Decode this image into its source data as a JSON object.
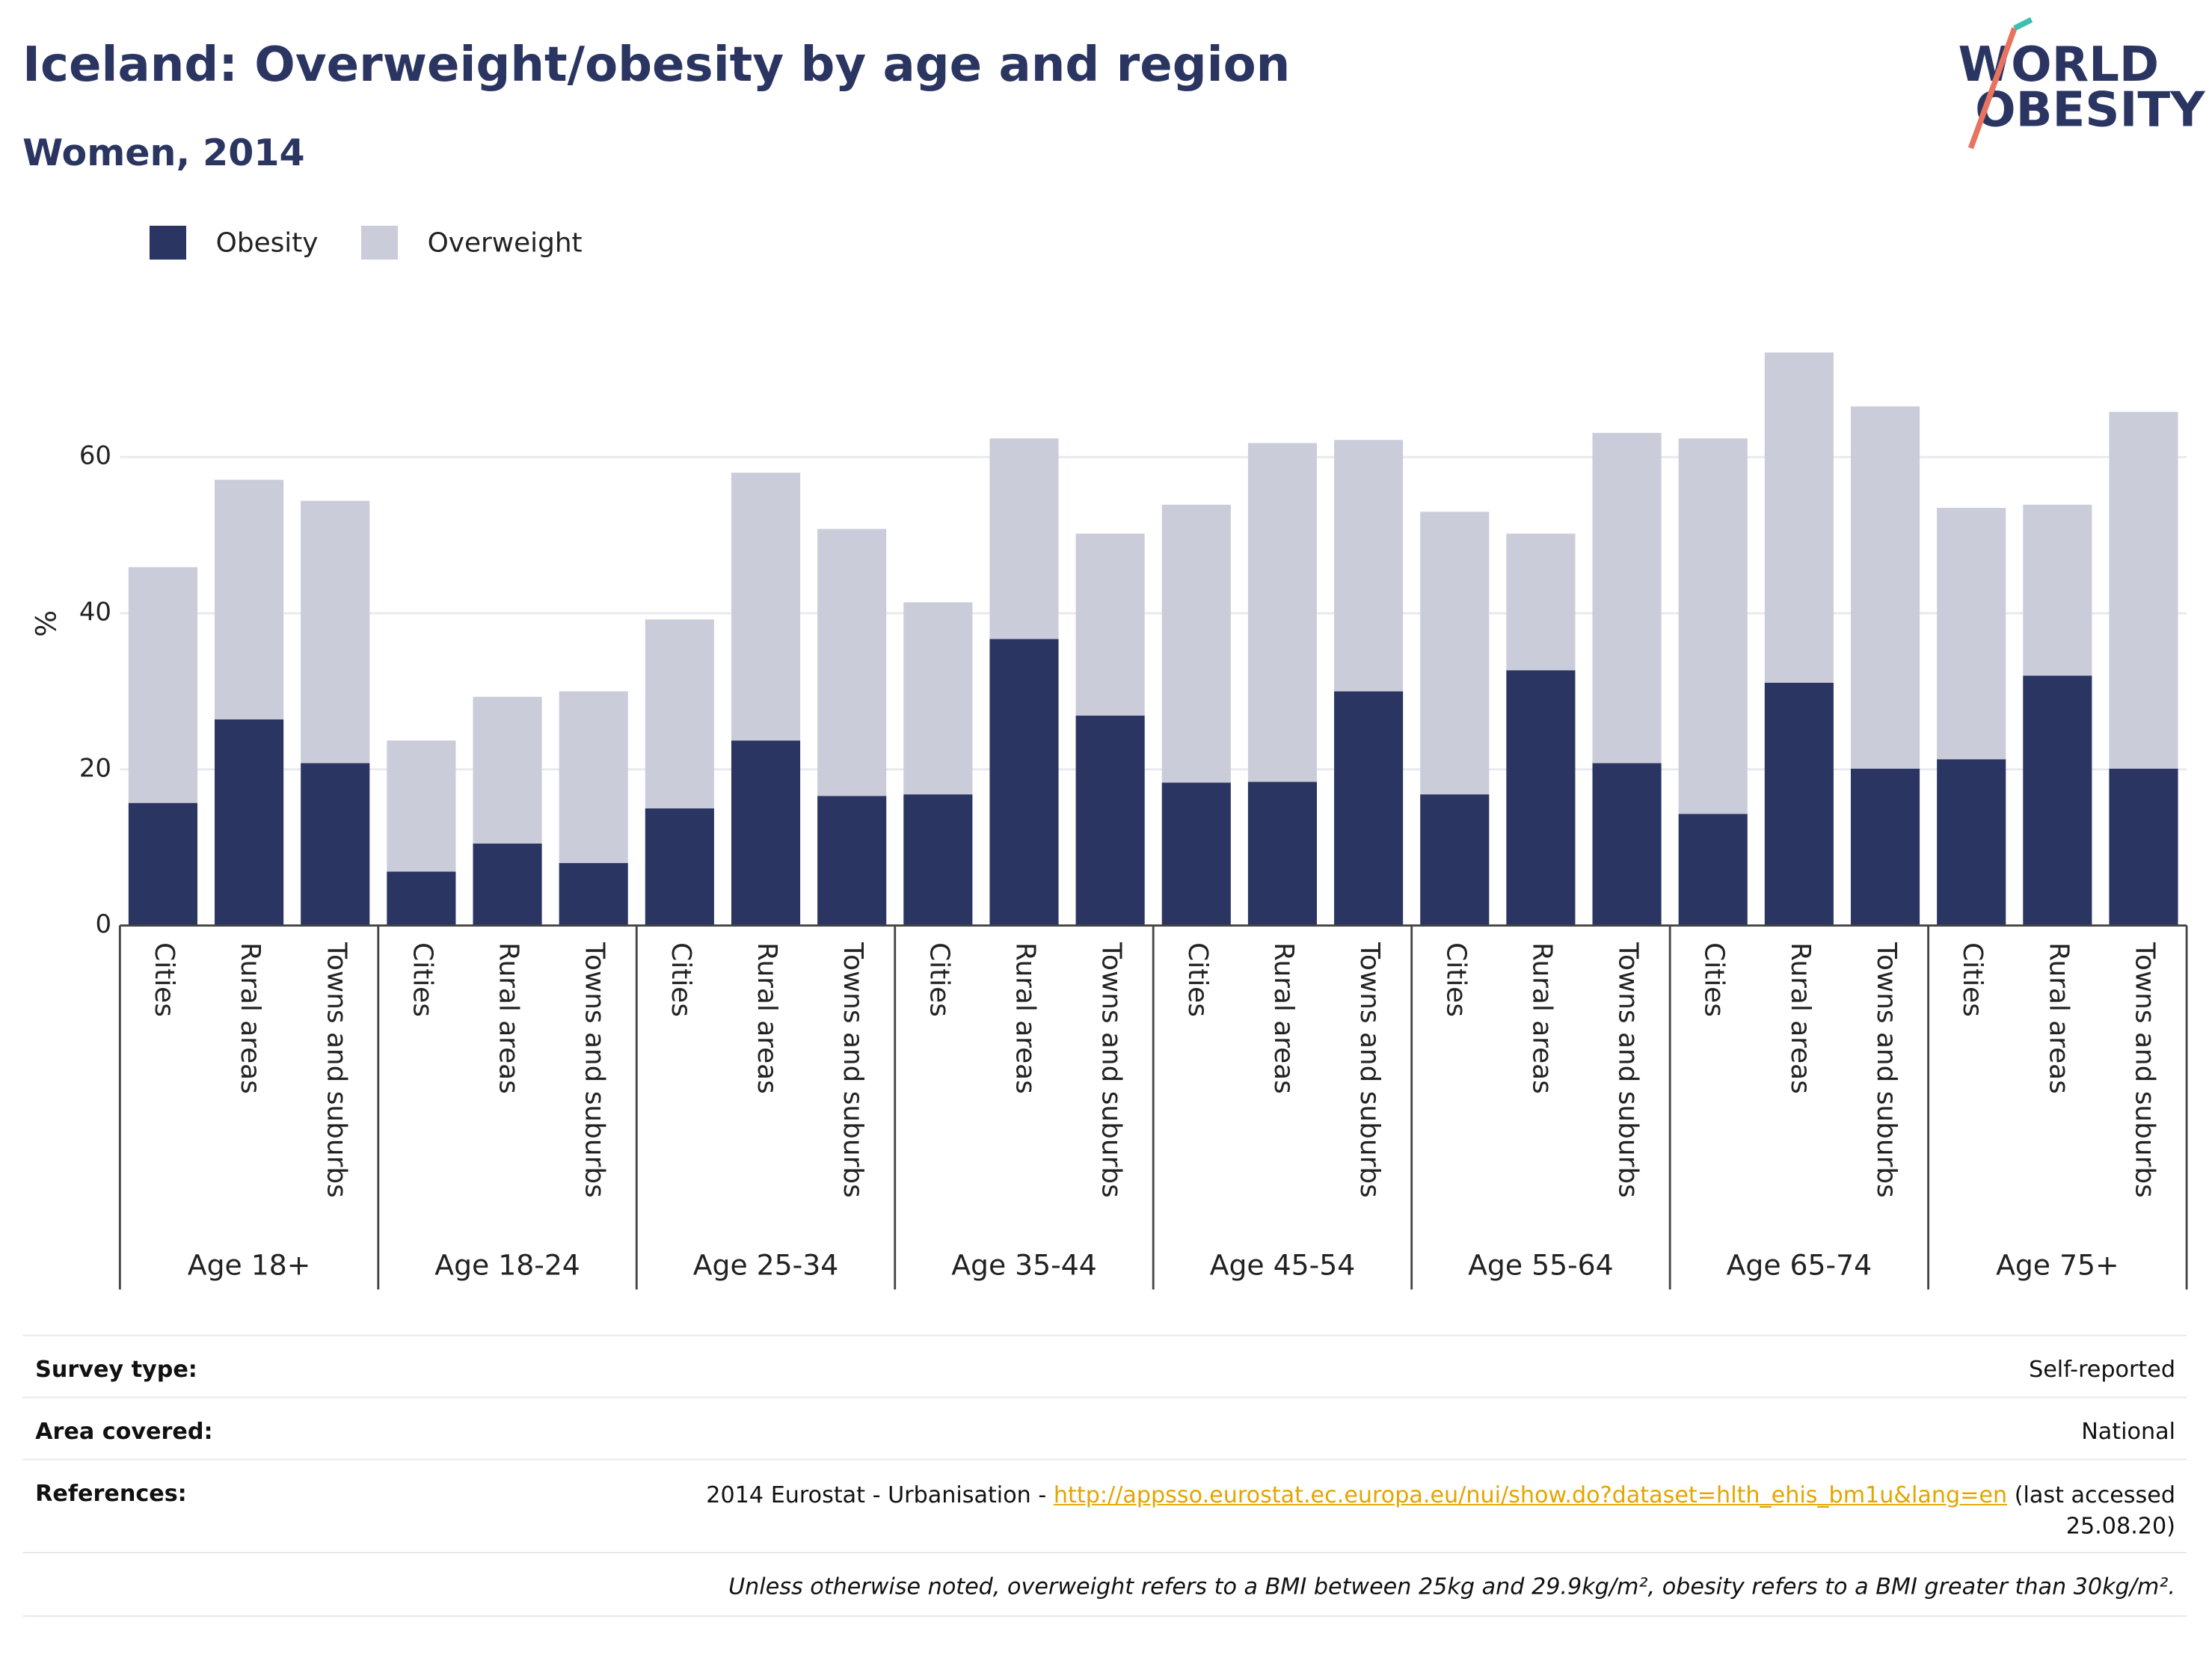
{
  "chart_data": {
    "type": "stacked_bar",
    "title": "Iceland: Overweight/obesity by age and region",
    "subtitle": "Women, 2014",
    "ylabel": "%",
    "categories": [
      "Cities",
      "Rural areas",
      "Towns and suburbs",
      "Cities",
      "Rural areas",
      "Towns and suburbs",
      "Cities",
      "Rural areas",
      "Towns and suburbs",
      "Cities",
      "Rural areas",
      "Towns and suburbs",
      "Cities",
      "Rural areas",
      "Towns and suburbs",
      "Cities",
      "Rural areas",
      "Towns and suburbs",
      "Cities",
      "Rural areas",
      "Towns and suburbs",
      "Cities",
      "Rural areas",
      "Towns and suburbs"
    ],
    "category_groups": [
      "Age 18+",
      "Age 18-24",
      "Age 25-34",
      "Age 35-44",
      "Age 45-54",
      "Age 55-64",
      "Age 65-74",
      "Age 75+"
    ],
    "series": [
      {
        "name": "Obesity",
        "color": "#2b3562",
        "values": [
          15.7,
          26.4,
          20.8,
          6.9,
          10.5,
          8.0,
          15.0,
          23.7,
          16.6,
          16.8,
          36.7,
          26.9,
          18.3,
          18.4,
          30.0,
          16.8,
          32.7,
          20.8,
          14.3,
          31.1,
          20.1,
          21.3,
          32.0,
          20.1
        ]
      },
      {
        "name": "Overweight",
        "color": "#cacdd9",
        "values": [
          30.2,
          30.7,
          33.6,
          16.8,
          18.8,
          22.0,
          24.2,
          34.3,
          34.2,
          24.6,
          25.7,
          23.3,
          35.6,
          43.4,
          32.2,
          36.2,
          17.5,
          42.3,
          48.1,
          42.3,
          46.4,
          32.2,
          21.9,
          45.7
        ]
      }
    ],
    "ylim": [
      0,
      75
    ],
    "yticks": [
      0,
      20,
      40,
      60
    ],
    "grid": true,
    "legend": "top-left"
  },
  "logo": [
    "WORLD",
    "OBESITY"
  ],
  "footer": {
    "survey_label": "Survey type:",
    "survey_value": "Self-reported",
    "area_label": "Area covered:",
    "area_value": "National",
    "references_label": "References:",
    "references_text": "2014 Eurostat - Urbanisation - ",
    "references_link": "http://appsso.eurostat.ec.europa.eu/nui/show.do?dataset=hlth_ehis_bm1u&lang=en",
    "references_suffix": " (last accessed 25.08.20)",
    "note": "Unless otherwise noted, overweight refers to a BMI between 25kg and 29.9kg/m², obesity refers to a BMI greater than 30kg/m²."
  }
}
